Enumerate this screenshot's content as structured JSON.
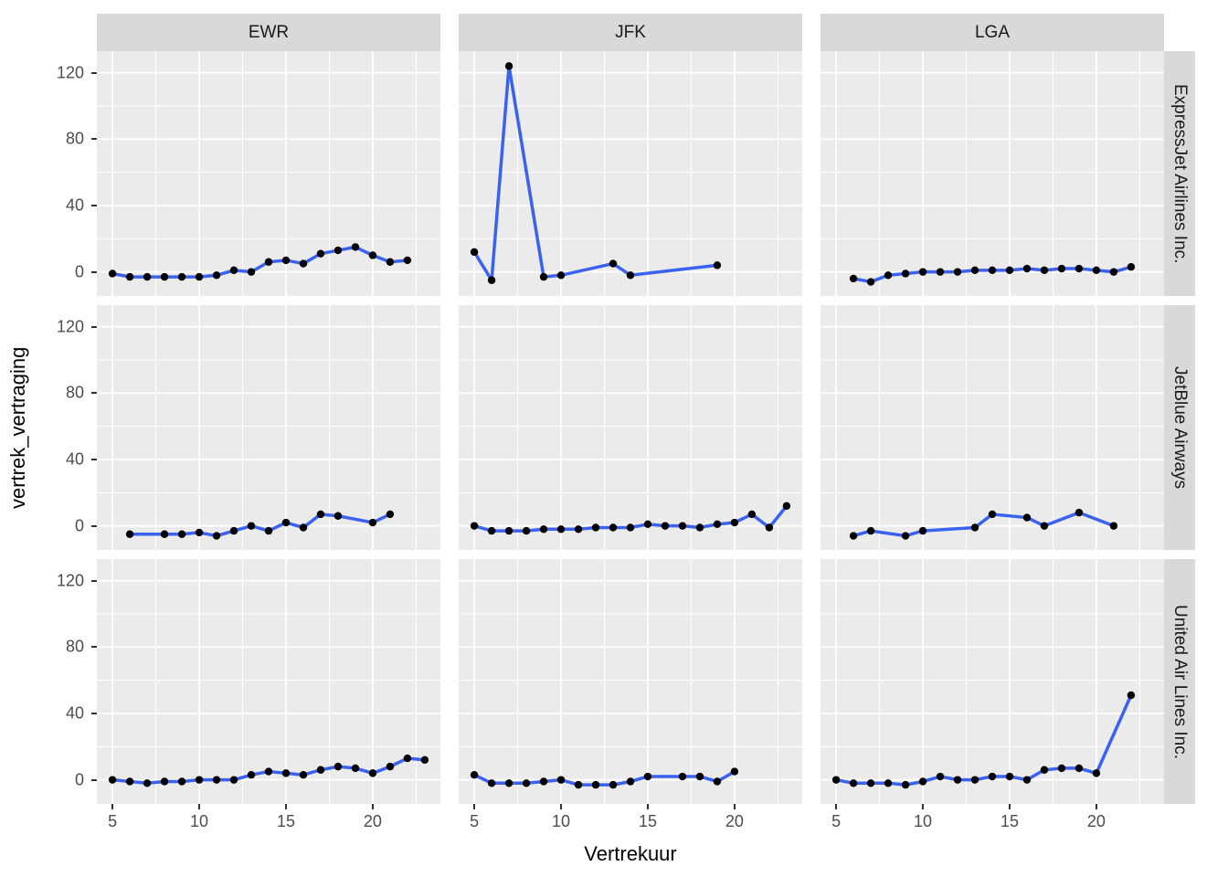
{
  "figure": {
    "xlabel": "Vertrekuur",
    "ylabel": "vertrek_vertraging"
  },
  "chart_data": {
    "type": "line",
    "title": "",
    "xlabel": "Vertrekuur",
    "ylabel": "vertrek_vertraging",
    "facet_columns": [
      "EWR",
      "JFK",
      "LGA"
    ],
    "facet_rows": [
      "ExpressJet Airlines Inc.",
      "JetBlue Airways",
      "United Air Lines Inc."
    ],
    "x_ticks": [
      5,
      10,
      15,
      20
    ],
    "x_minor_ticks": [
      7.5,
      12.5,
      17.5,
      22.5
    ],
    "y_ticks": [
      0,
      40,
      80,
      120
    ],
    "y_minor_ticks": [
      20,
      60,
      100
    ],
    "x_range": [
      4.1,
      23.9
    ],
    "y_range": [
      -14.5,
      133
    ],
    "grid": true,
    "legend": "none",
    "style": {
      "line_color": "#3A62F1",
      "point_color": "#000000",
      "panel_bg": "#EBEBEB",
      "strip_bg": "#D9D9D9",
      "grid_color": "#FFFFFF",
      "tick_color": "#333333",
      "tick_text_color": "#4D4D4D",
      "title_color": "#000000"
    },
    "panels": [
      {
        "facet_col": "EWR",
        "facet_row": "ExpressJet Airlines Inc.",
        "points": [
          [
            5,
            -1
          ],
          [
            6,
            -3
          ],
          [
            7,
            -3
          ],
          [
            8,
            -3
          ],
          [
            9,
            -3
          ],
          [
            10,
            -3
          ],
          [
            11,
            -2
          ],
          [
            12,
            1
          ],
          [
            13,
            0
          ],
          [
            14,
            6
          ],
          [
            15,
            7
          ],
          [
            16,
            5
          ],
          [
            17,
            11
          ],
          [
            18,
            13
          ],
          [
            19,
            15
          ],
          [
            20,
            10
          ],
          [
            21,
            6
          ],
          [
            22,
            7
          ]
        ]
      },
      {
        "facet_col": "JFK",
        "facet_row": "ExpressJet Airlines Inc.",
        "points": [
          [
            5,
            12
          ],
          [
            6,
            -5
          ],
          [
            7,
            124
          ],
          [
            9,
            -3
          ],
          [
            10,
            -2
          ],
          [
            13,
            5
          ],
          [
            14,
            -2
          ],
          [
            19,
            4
          ]
        ]
      },
      {
        "facet_col": "LGA",
        "facet_row": "ExpressJet Airlines Inc.",
        "points": [
          [
            6,
            -4
          ],
          [
            7,
            -6
          ],
          [
            8,
            -2
          ],
          [
            9,
            -1
          ],
          [
            10,
            0
          ],
          [
            11,
            0
          ],
          [
            12,
            0
          ],
          [
            13,
            1
          ],
          [
            14,
            1
          ],
          [
            15,
            1
          ],
          [
            16,
            2
          ],
          [
            17,
            1
          ],
          [
            18,
            2
          ],
          [
            19,
            2
          ],
          [
            20,
            1
          ],
          [
            21,
            0
          ],
          [
            22,
            3
          ]
        ]
      },
      {
        "facet_col": "EWR",
        "facet_row": "JetBlue Airways",
        "points": [
          [
            6,
            -5
          ],
          [
            8,
            -5
          ],
          [
            9,
            -5
          ],
          [
            10,
            -4
          ],
          [
            11,
            -6
          ],
          [
            12,
            -3
          ],
          [
            13,
            0
          ],
          [
            14,
            -3
          ],
          [
            15,
            2
          ],
          [
            16,
            -1
          ],
          [
            17,
            7
          ],
          [
            18,
            6
          ],
          [
            20,
            2
          ],
          [
            21,
            7
          ]
        ]
      },
      {
        "facet_col": "JFK",
        "facet_row": "JetBlue Airways",
        "points": [
          [
            5,
            0
          ],
          [
            6,
            -3
          ],
          [
            7,
            -3
          ],
          [
            8,
            -3
          ],
          [
            9,
            -2
          ],
          [
            10,
            -2
          ],
          [
            11,
            -2
          ],
          [
            12,
            -1
          ],
          [
            13,
            -1
          ],
          [
            14,
            -1
          ],
          [
            15,
            1
          ],
          [
            16,
            0
          ],
          [
            17,
            0
          ],
          [
            18,
            -1
          ],
          [
            19,
            1
          ],
          [
            20,
            2
          ],
          [
            21,
            7
          ],
          [
            22,
            -1
          ],
          [
            23,
            12
          ]
        ]
      },
      {
        "facet_col": "LGA",
        "facet_row": "JetBlue Airways",
        "points": [
          [
            6,
            -6
          ],
          [
            7,
            -3
          ],
          [
            9,
            -6
          ],
          [
            10,
            -3
          ],
          [
            13,
            -1
          ],
          [
            14,
            7
          ],
          [
            16,
            5
          ],
          [
            17,
            0
          ],
          [
            19,
            8
          ],
          [
            21,
            0
          ]
        ]
      },
      {
        "facet_col": "EWR",
        "facet_row": "United Air Lines Inc.",
        "points": [
          [
            5,
            0
          ],
          [
            6,
            -1
          ],
          [
            7,
            -2
          ],
          [
            8,
            -1
          ],
          [
            9,
            -1
          ],
          [
            10,
            0
          ],
          [
            11,
            0
          ],
          [
            12,
            0
          ],
          [
            13,
            3
          ],
          [
            14,
            5
          ],
          [
            15,
            4
          ],
          [
            16,
            3
          ],
          [
            17,
            6
          ],
          [
            18,
            8
          ],
          [
            19,
            7
          ],
          [
            20,
            4
          ],
          [
            21,
            8
          ],
          [
            22,
            13
          ],
          [
            23,
            12
          ]
        ]
      },
      {
        "facet_col": "JFK",
        "facet_row": "United Air Lines Inc.",
        "points": [
          [
            5,
            3
          ],
          [
            6,
            -2
          ],
          [
            7,
            -2
          ],
          [
            8,
            -2
          ],
          [
            9,
            -1
          ],
          [
            10,
            0
          ],
          [
            11,
            -3
          ],
          [
            12,
            -3
          ],
          [
            13,
            -3
          ],
          [
            14,
            -1
          ],
          [
            15,
            2
          ],
          [
            17,
            2
          ],
          [
            18,
            2
          ],
          [
            19,
            -1
          ],
          [
            20,
            5
          ]
        ]
      },
      {
        "facet_col": "LGA",
        "facet_row": "United Air Lines Inc.",
        "points": [
          [
            5,
            0
          ],
          [
            6,
            -2
          ],
          [
            7,
            -2
          ],
          [
            8,
            -2
          ],
          [
            9,
            -3
          ],
          [
            10,
            -1
          ],
          [
            11,
            2
          ],
          [
            12,
            0
          ],
          [
            13,
            0
          ],
          [
            14,
            2
          ],
          [
            15,
            2
          ],
          [
            16,
            0
          ],
          [
            17,
            6
          ],
          [
            18,
            7
          ],
          [
            19,
            7
          ],
          [
            20,
            4
          ],
          [
            22,
            51
          ]
        ]
      }
    ]
  }
}
